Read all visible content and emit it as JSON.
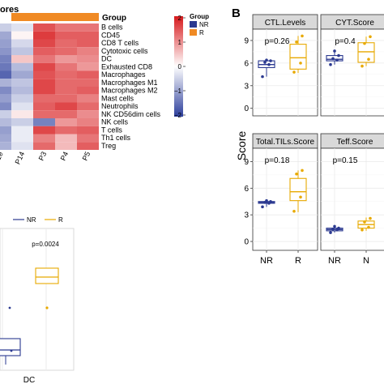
{
  "heatmap": {
    "header_label": "ores",
    "group_label": "Group",
    "rows": [
      "B cells",
      "CD45",
      "CD8 T cells",
      "Cytotoxic cells",
      "DC",
      "Exhausted CD8",
      "Macrophages",
      "Macrophages M1",
      "Macrophages M2",
      "Mast cells",
      "Neutrophils",
      "NK CD56dim cells",
      "NK cells",
      "T cells",
      "Th1 cells",
      "Treg"
    ],
    "columns": [
      "P14",
      "P3",
      "P4",
      "P5"
    ],
    "truncated_column_label": "P1e",
    "values": [
      [
        -0.5,
        -0.3,
        1.5,
        1.2,
        1.2
      ],
      [
        -0.9,
        0.1,
        1.7,
        1.4,
        1.4
      ],
      [
        -1.0,
        -0.4,
        1.6,
        1.3,
        1.4
      ],
      [
        -1.1,
        -0.6,
        1.4,
        1.3,
        1.1
      ],
      [
        -1.3,
        0.5,
        1.2,
        0.9,
        1.0
      ],
      [
        -1.4,
        -0.7,
        1.6,
        1.2,
        0.9
      ],
      [
        -1.6,
        -0.9,
        1.5,
        1.3,
        1.4
      ],
      [
        -0.8,
        -0.6,
        1.6,
        1.3,
        1.3
      ],
      [
        -1.2,
        -0.7,
        1.6,
        1.3,
        1.4
      ],
      [
        -1.0,
        -0.5,
        1.3,
        1.3,
        1.1
      ],
      [
        -1.2,
        -0.3,
        1.4,
        1.6,
        1.3
      ],
      [
        -0.5,
        0.2,
        1.3,
        1.3,
        1.0
      ],
      [
        -0.7,
        -0.5,
        -1.3,
        0.9,
        1.1
      ],
      [
        -1.0,
        -0.2,
        1.6,
        1.3,
        1.4
      ],
      [
        -0.9,
        -0.2,
        1.1,
        0.6,
        1.2
      ],
      [
        -0.8,
        -0.3,
        1.3,
        0.6,
        1.4
      ]
    ],
    "legend": {
      "ticks": [
        "2",
        "1",
        "0",
        "−1",
        "−2"
      ],
      "group_title": "Group",
      "groups": [
        "NR",
        "R"
      ]
    }
  },
  "panel_b": {
    "letter": "B",
    "ylabel": "Score",
    "xcats": [
      "NR",
      "R"
    ],
    "extra_xcat": "N",
    "yticks": [
      "0",
      "3",
      "6",
      "9"
    ]
  },
  "panel_c": {
    "legend": [
      "NR",
      "R"
    ],
    "pvalue": "p=0.0024",
    "xlabel": "DC"
  },
  "colors": {
    "NR": "#2b3990",
    "R": "#e8a900",
    "orange_bar": "#f08a24",
    "heat_high": "#d7191c",
    "heat_low": "#2c3e9c",
    "grid": "#ebebeb",
    "strip_fill": "#d9d9d9"
  },
  "chart_data": [
    {
      "type": "heatmap",
      "title": "",
      "rows": [
        "B cells",
        "CD45",
        "CD8 T cells",
        "Cytotoxic cells",
        "DC",
        "Exhausted CD8",
        "Macrophages",
        "Macrophages M1",
        "Macrophages M2",
        "Mast cells",
        "Neutrophils",
        "NK CD56dim cells",
        "NK cells",
        "T cells",
        "Th1 cells",
        "Treg"
      ],
      "columns": [
        "P1e",
        "P14",
        "P3",
        "P4",
        "P5"
      ],
      "value_range": [
        -2,
        2
      ]
    },
    {
      "type": "box",
      "title": "CTL.Levels",
      "pvalue": "p=0.26",
      "ylabel": "Score",
      "ylim": [
        -1,
        10.5
      ],
      "yticks": [
        0,
        3,
        6,
        9
      ],
      "categories": [
        "NR",
        "R"
      ],
      "boxes": [
        {
          "name": "NR",
          "min": 4.2,
          "q1": 5.4,
          "median": 5.8,
          "q3": 6.3,
          "max": 6.4,
          "points": [
            4.2,
            5.8,
            6.1,
            6.3,
            6.4
          ]
        },
        {
          "name": "R",
          "min": 4.7,
          "q1": 5.2,
          "median": 6.7,
          "q3": 8.5,
          "max": 9.6,
          "points": [
            4.8,
            6.0,
            8.8,
            9.6
          ]
        }
      ]
    },
    {
      "type": "box",
      "title": "CYT.Score",
      "pvalue": "p=0.4",
      "ylim": [
        -1,
        10.5
      ],
      "categories": [
        "NR",
        "R"
      ],
      "boxes": [
        {
          "name": "NR",
          "min": 5.8,
          "q1": 6.3,
          "median": 6.5,
          "q3": 7.0,
          "max": 7.6,
          "points": [
            5.8,
            6.4,
            6.6,
            7.0,
            7.6
          ]
        },
        {
          "name": "R",
          "min": 5.6,
          "q1": 6.1,
          "median": 7.5,
          "q3": 8.7,
          "max": 9.5,
          "points": [
            5.6,
            6.5,
            8.6,
            9.5
          ]
        }
      ]
    },
    {
      "type": "box",
      "title": "Total.TILs.Score",
      "pvalue": "p=0.18",
      "ylabel": "Score",
      "ylim": [
        -1,
        10.5
      ],
      "yticks": [
        0,
        3,
        6,
        9
      ],
      "categories": [
        "NR",
        "R"
      ],
      "boxes": [
        {
          "name": "NR",
          "min": 3.9,
          "q1": 4.3,
          "median": 4.4,
          "q3": 4.5,
          "max": 4.6,
          "points": [
            3.9,
            4.3,
            4.4,
            4.5,
            4.6
          ]
        },
        {
          "name": "R",
          "min": 3.3,
          "q1": 4.6,
          "median": 5.6,
          "q3": 7.1,
          "max": 8.0,
          "points": [
            3.4,
            5.0,
            7.6,
            8.0
          ]
        }
      ]
    },
    {
      "type": "box",
      "title": "Teff.Score",
      "pvalue": "p=0.15",
      "ylim": [
        -1,
        10.5
      ],
      "categories": [
        "NR",
        "R"
      ],
      "boxes": [
        {
          "name": "NR",
          "min": 1.0,
          "q1": 1.2,
          "median": 1.35,
          "q3": 1.5,
          "max": 1.7,
          "points": [
            1.0,
            1.3,
            1.4,
            1.5,
            1.7
          ]
        },
        {
          "name": "R",
          "min": 1.2,
          "q1": 1.5,
          "median": 1.9,
          "q3": 2.3,
          "max": 2.7,
          "points": [
            1.3,
            1.6,
            2.2,
            2.6
          ]
        }
      ]
    },
    {
      "type": "box",
      "title": "",
      "pvalue": "p=0.0024",
      "categories": [
        "DC"
      ],
      "legend": [
        "NR",
        "R"
      ]
    }
  ]
}
